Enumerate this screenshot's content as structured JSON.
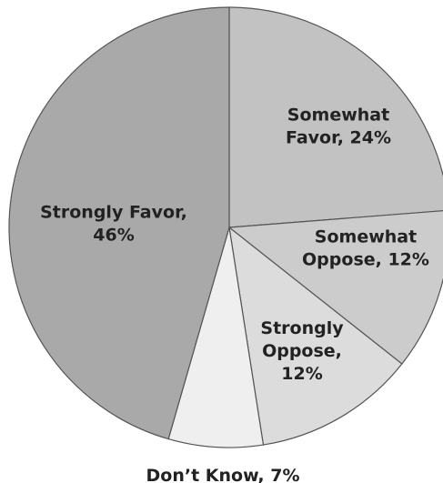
{
  "chart_data": {
    "type": "pie",
    "start": "top, clockwise",
    "slices": [
      {
        "name": "Somewhat Favor",
        "value": 24,
        "label_lines": [
          "Somewhat",
          "Favor, 24%"
        ],
        "color": "#c2c2c2"
      },
      {
        "name": "Somewhat Oppose",
        "value": 12,
        "label_lines": [
          "Somewhat",
          "Oppose, 12%"
        ],
        "color": "#cccccc"
      },
      {
        "name": "Strongly Oppose",
        "value": 12,
        "label_lines": [
          "Strongly",
          "Oppose,",
          "12%"
        ],
        "color": "#dcdcdc"
      },
      {
        "name": "Don't Know",
        "value": 7,
        "label_lines": [
          "Don’t Know, 7%"
        ],
        "color": "#efefef"
      },
      {
        "name": "Strongly Favor",
        "value": 46,
        "label_lines": [
          "Strongly Favor,",
          "46%"
        ],
        "color": "#a9a9a9"
      }
    ]
  }
}
